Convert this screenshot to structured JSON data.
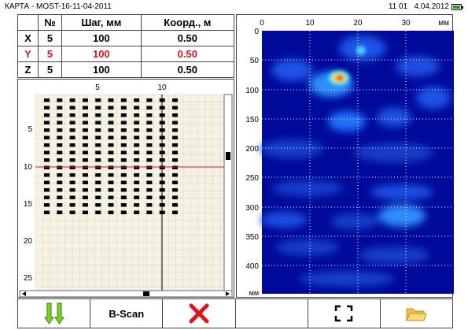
{
  "title": "КАРТА - MOST-16-11-04-2011",
  "time": "11 01",
  "date": "4.04.2012",
  "table": {
    "headers": [
      "",
      "№",
      "Шаг, мм",
      "Коорд., м"
    ],
    "rows": [
      {
        "axis": "X",
        "num": "5",
        "step": "100",
        "coord": "0.50"
      },
      {
        "axis": "Y",
        "num": "5",
        "step": "100",
        "coord": "0.50"
      },
      {
        "axis": "Z",
        "num": "5",
        "step": "100",
        "coord": "0.50"
      }
    ]
  },
  "grid": {
    "x_ticks": [
      "5",
      "10"
    ],
    "y_ticks": [
      "5",
      "10",
      "15",
      "20",
      "25"
    ],
    "point_cols": 11,
    "point_rows": 16,
    "cursor_x": 10,
    "cursor_y": 10
  },
  "scan": {
    "x_ticks": [
      "0",
      "10",
      "20",
      "30"
    ],
    "x_unit": "мм",
    "y_ticks": [
      "50",
      "100",
      "150",
      "200",
      "250",
      "300",
      "350",
      "400"
    ],
    "y_zero": "0",
    "y_unit": "мм"
  },
  "toolbar": {
    "bscan_label": "B-Scan",
    "icons": [
      "double-down-arrow-icon",
      "close-icon",
      "fullscreen-icon",
      "folder-icon"
    ]
  },
  "colors": {
    "accent_red": "#e0141e",
    "arrow_green": "#7fd12a",
    "scan_bg": "#000a9a"
  }
}
